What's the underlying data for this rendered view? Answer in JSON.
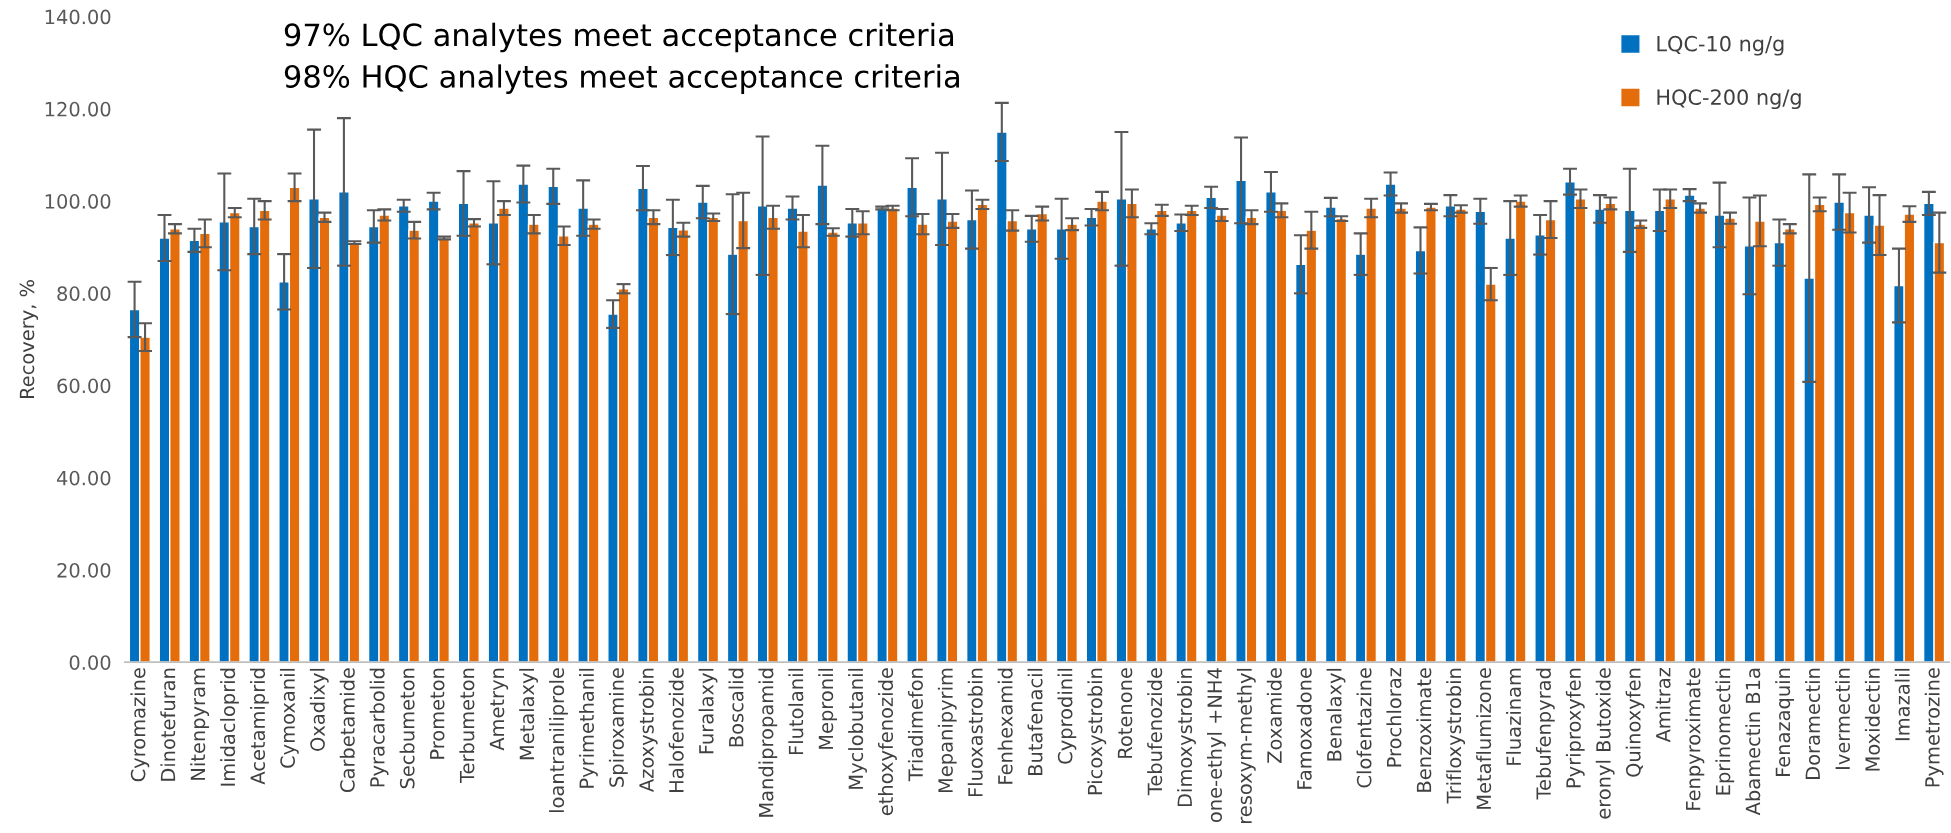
{
  "chart_data": {
    "type": "bar",
    "ylabel": "Recovery, %",
    "annotations": [
      "97% LQC analytes meet acceptance criteria",
      "98% HQC analytes meet acceptance criteria"
    ],
    "categories": [
      "Cyromazine",
      "Dinotefuran",
      "Nitenpyram",
      "Imidacloprid",
      "Acetamiprid",
      "Cymoxanil",
      "Oxadixyl",
      "Carbetamide",
      "Pyracarbolid",
      "Secbumeton",
      "Prometon",
      "Terbumeton",
      "Ametryn",
      "Metalaxyl",
      "loantraniliprole",
      "Pyrimethanil",
      "Spiroxamine",
      "Azoxystrobin",
      "Halofenozide",
      "Furalaxyl",
      "Boscalid",
      "Mandipropamid",
      "Flutolanil",
      "Mepronil",
      "Myclobutanil",
      "ethoxyfenozide",
      "Triadimefon",
      "Mepanipyrim",
      "Fluoxastrobin",
      "Fenhexamid",
      "Butafenacil",
      "Cyprodinil",
      "Picoxystrobin",
      "Rotenone",
      "Tebufenozide",
      "Dimoxystrobin",
      "one-ethyl +NH4",
      "resoxym-methyl",
      "Zoxamide",
      "Famoxadone",
      "Benalaxyl",
      "Clofentazine",
      "Prochloraz",
      "Benzoximate",
      "Trifloxystrobin",
      "Metaflumizone",
      "Fluazinam",
      "Tebufenpyrad",
      "Pyriproxyfen",
      "eronyl Butoxide",
      "Quinoxyfen",
      "Amitraz",
      "Fenpyroximate",
      "Eprinomectin",
      "Abamectin B1a",
      "Fenazaquin",
      "Doramectin",
      "Ivermectin",
      "Moxidectin",
      "Imazalil",
      "Pymetrozine"
    ],
    "series": [
      {
        "name": "LQC-10 ng/g",
        "color": "#0070c0",
        "values": [
          76.5,
          92,
          91.5,
          95.5,
          94.5,
          82.5,
          100.5,
          102,
          94.5,
          99,
          100,
          99.5,
          95.3,
          103.7,
          103.2,
          98.5,
          75.5,
          102.8,
          94.3,
          99.8,
          88.5,
          99,
          98.5,
          103.5,
          95.3,
          98.5,
          103,
          100.5,
          96,
          115,
          94,
          94,
          96.5,
          100.5,
          94,
          95.3,
          100.8,
          104.5,
          102,
          86.3,
          98.7,
          88.5,
          103.7,
          89.3,
          99,
          97.8,
          92,
          92.7,
          104.2,
          98.3,
          98,
          98,
          101.3,
          97,
          90.3,
          91,
          83.3,
          99.8,
          97,
          81.7,
          99.5
        ],
        "errors": [
          6,
          5,
          2.5,
          10.5,
          6,
          6,
          15,
          16,
          3.5,
          1.3,
          1.8,
          7,
          9,
          4,
          3.8,
          6,
          3,
          4.8,
          6,
          3.5,
          13,
          15,
          2.5,
          8.5,
          3,
          0.3,
          6.3,
          10,
          6.3,
          6.3,
          2.8,
          6.5,
          1.8,
          14.5,
          1.2,
          1.8,
          2.3,
          9.3,
          4.3,
          6.3,
          2,
          4.5,
          2.5,
          5,
          2.3,
          2.7,
          8,
          4.3,
          2.8,
          3,
          9,
          4.5,
          1.3,
          7,
          10.5,
          5,
          22.5,
          6,
          6,
          8,
          2.5
        ]
      },
      {
        "name": "HQC-200 ng/g",
        "color": "#e46c0a",
        "values": [
          70.5,
          94,
          93,
          97.5,
          98,
          103,
          96.5,
          91,
          97,
          93.7,
          92,
          95.3,
          98.5,
          95,
          92.5,
          95,
          81,
          96.5,
          93.8,
          96.5,
          95.8,
          96.5,
          93.5,
          93.3,
          95.3,
          98.5,
          95,
          95.7,
          99.3,
          95.8,
          97.3,
          95,
          100,
          99.5,
          98,
          98,
          97,
          96.5,
          98,
          93.7,
          96.2,
          98.5,
          98.5,
          98.7,
          98.3,
          82,
          100,
          96,
          100.5,
          99.5,
          95,
          100.5,
          98.5,
          96.3,
          95.7,
          94,
          99.3,
          97.5,
          94.8,
          97.2,
          91
        ],
        "errors": [
          3,
          1,
          3,
          1,
          2,
          3,
          1,
          0.3,
          1.2,
          1.8,
          0.3,
          0.8,
          1.5,
          2,
          2,
          1,
          1,
          1.5,
          1.5,
          0.8,
          6,
          2.5,
          3.5,
          0.8,
          2.5,
          0.5,
          2.2,
          1.5,
          1,
          2.2,
          1.5,
          1.3,
          2,
          3,
          1.2,
          1,
          1.3,
          1.5,
          1.5,
          4,
          0.5,
          2,
          1,
          0.7,
          0.8,
          3.5,
          1.2,
          4,
          2,
          1.3,
          0.8,
          2,
          1,
          1.2,
          5.5,
          1,
          1.5,
          4.3,
          6.5,
          1.7,
          6.5
        ]
      }
    ],
    "ylim": [
      0,
      140
    ],
    "yticks": [
      {
        "value": 0,
        "label": "0.00"
      },
      {
        "value": 20,
        "label": "20.00"
      },
      {
        "value": 40,
        "label": "40.00"
      },
      {
        "value": 60,
        "label": "60.00"
      },
      {
        "value": 80,
        "label": "80.00"
      },
      {
        "value": 100,
        "label": "100.00"
      },
      {
        "value": 120,
        "label": "120.00"
      },
      {
        "value": 140,
        "label": "140.00"
      }
    ],
    "legend": "top right"
  }
}
